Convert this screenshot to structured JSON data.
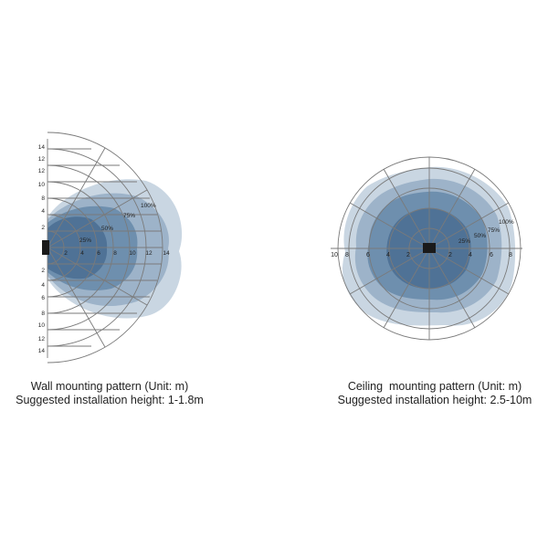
{
  "wall": {
    "caption_line1": "Wall mounting pattern (Unit: m)",
    "caption_line2": "Suggested installation height: 1-1.8m",
    "radial_labels": [
      "2",
      "4",
      "6",
      "8",
      "10",
      "12",
      "14"
    ],
    "axis_labels_up": [
      "14",
      "12",
      "10",
      "8",
      "6",
      "4",
      "2"
    ],
    "axis_labels_down": [
      "2",
      "4",
      "6",
      "8",
      "10",
      "12",
      "14"
    ],
    "pct_labels": [
      "100%",
      "75%",
      "50%",
      "25%"
    ]
  },
  "ceiling": {
    "caption_line1": "Ceiling  mounting pattern (Unit: m)",
    "caption_line2": "Suggested installation height: 2.5-10m",
    "axis_labels_left": [
      "10",
      "8",
      "6",
      "4",
      "2"
    ],
    "axis_labels_right": [
      "2",
      "4",
      "6",
      "8"
    ],
    "pct_labels": [
      "100%",
      "75%",
      "50%",
      "25%"
    ]
  },
  "colors": {
    "zone_100": "#c9d6e2",
    "zone_75": "#9db3c9",
    "zone_50": "#6e8fae",
    "zone_25": "#4f7296",
    "grid": "#7a7a7a",
    "sensor": "#1a1a1a"
  }
}
